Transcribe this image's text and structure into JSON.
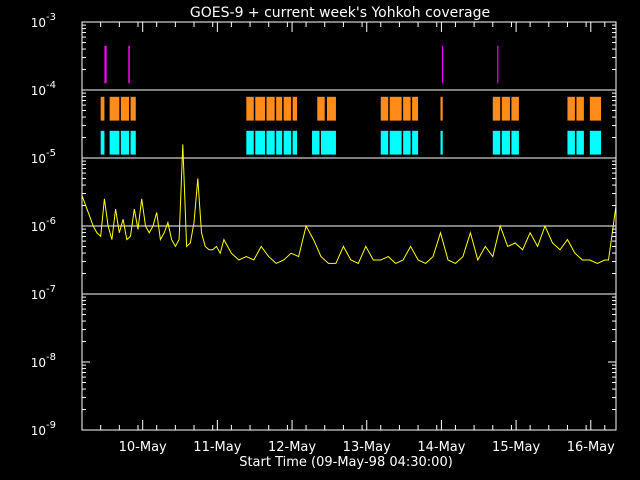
{
  "chart_data": {
    "type": "line",
    "title": "GOES-9 + current week's Yohkoh coverage",
    "xlabel": "Start Time (09-May-98 04:30:00)",
    "ylabel": "",
    "x_unit": "days after 09-May-98 04:30:00",
    "xlim": [
      0,
      7.15
    ],
    "x_ticks": [
      {
        "label": "10-May",
        "x": 0.8125
      },
      {
        "label": "11-May",
        "x": 1.8125
      },
      {
        "label": "12-May",
        "x": 2.8125
      },
      {
        "label": "13-May",
        "x": 3.8125
      },
      {
        "label": "14-May",
        "x": 4.8125
      },
      {
        "label": "15-May",
        "x": 5.8125
      },
      {
        "label": "16-May",
        "x": 6.8125
      }
    ],
    "y_scale": "log",
    "ylim_exp": [
      -9,
      -3
    ],
    "y_ticks": [
      {
        "base": "10",
        "exp": "-9",
        "value": -9
      },
      {
        "base": "10",
        "exp": "-8",
        "value": -8
      },
      {
        "base": "10",
        "exp": "-7",
        "value": -7
      },
      {
        "base": "10",
        "exp": "-6",
        "value": -6
      },
      {
        "base": "10",
        "exp": "-5",
        "value": -5
      },
      {
        "base": "10",
        "exp": "-4",
        "value": -4
      },
      {
        "base": "10",
        "exp": "-3",
        "value": -3
      }
    ],
    "gridlines_y": [
      -7,
      -6,
      -5,
      -4
    ],
    "colors": {
      "background": "#000000",
      "axes": "#ffffff",
      "goes_flux": "#ffff00",
      "bar_magenta": "#ff00ff",
      "bar_orange": "#ff8c1a",
      "bar_cyan": "#00ffff"
    },
    "series": [
      {
        "color": "#ffff00",
        "x": [
          0.0,
          0.05,
          0.1,
          0.15,
          0.2,
          0.25,
          0.3,
          0.35,
          0.4,
          0.45,
          0.5,
          0.55,
          0.6,
          0.65,
          0.7,
          0.75,
          0.8,
          0.85,
          0.9,
          0.95,
          1.0,
          1.05,
          1.1,
          1.15,
          1.2,
          1.25,
          1.3,
          1.35,
          1.4,
          1.45,
          1.5,
          1.55,
          1.6,
          1.65,
          1.7,
          1.75,
          1.8,
          1.85,
          1.9,
          1.95,
          2.0,
          2.1,
          2.2,
          2.3,
          2.4,
          2.5,
          2.6,
          2.7,
          2.8,
          2.9,
          3.0,
          3.1,
          3.2,
          3.3,
          3.4,
          3.5,
          3.6,
          3.7,
          3.8,
          3.9,
          4.0,
          4.1,
          4.2,
          4.3,
          4.4,
          4.5,
          4.6,
          4.7,
          4.8,
          4.9,
          5.0,
          5.1,
          5.2,
          5.3,
          5.4,
          5.5,
          5.6,
          5.7,
          5.8,
          5.9,
          6.0,
          6.1,
          6.2,
          6.3,
          6.4,
          6.5,
          6.6,
          6.7,
          6.8,
          6.9,
          7.0,
          7.05,
          7.1,
          7.15
        ],
        "y_exp": [
          -5.55,
          -5.7,
          -5.85,
          -6.0,
          -6.1,
          -6.15,
          -5.6,
          -6.0,
          -6.2,
          -5.75,
          -6.1,
          -5.9,
          -6.2,
          -6.15,
          -5.75,
          -6.05,
          -5.6,
          -6.0,
          -6.1,
          -6.0,
          -5.8,
          -6.2,
          -6.1,
          -5.95,
          -6.2,
          -6.3,
          -6.2,
          -4.8,
          -6.3,
          -6.25,
          -5.95,
          -5.3,
          -6.1,
          -6.3,
          -6.35,
          -6.35,
          -6.3,
          -6.4,
          -6.2,
          -6.3,
          -6.4,
          -6.5,
          -6.45,
          -6.5,
          -6.3,
          -6.45,
          -6.55,
          -6.5,
          -6.4,
          -6.45,
          -6.0,
          -6.2,
          -6.45,
          -6.55,
          -6.55,
          -6.3,
          -6.5,
          -6.55,
          -6.3,
          -6.5,
          -6.5,
          -6.45,
          -6.55,
          -6.5,
          -6.3,
          -6.5,
          -6.55,
          -6.45,
          -6.1,
          -6.5,
          -6.55,
          -6.45,
          -6.1,
          -6.5,
          -6.3,
          -6.45,
          -6.0,
          -6.3,
          -6.25,
          -6.35,
          -6.1,
          -6.3,
          -6.0,
          -6.25,
          -6.35,
          -6.2,
          -6.4,
          -6.5,
          -6.5,
          -6.55,
          -6.5,
          -6.5,
          -6.1,
          -5.7
        ]
      }
    ],
    "coverage_bars": [
      {
        "color": "#ff00ff",
        "y_exp_range": [
          -3.9,
          -3.35
        ],
        "intervals": [
          [
            0.3,
            0.33
          ],
          [
            0.62,
            0.64
          ],
          [
            4.82,
            4.835
          ],
          [
            5.56,
            5.575
          ]
        ]
      },
      {
        "color": "#ff8c1a",
        "y_exp_range": [
          -4.45,
          -4.1
        ],
        "intervals": [
          [
            0.25,
            0.3
          ],
          [
            0.37,
            0.5
          ],
          [
            0.52,
            0.63
          ],
          [
            0.65,
            0.72
          ],
          [
            2.2,
            2.3
          ],
          [
            2.32,
            2.45
          ],
          [
            2.47,
            2.58
          ],
          [
            2.6,
            2.68
          ],
          [
            2.7,
            2.8
          ],
          [
            2.82,
            2.88
          ],
          [
            3.15,
            3.25
          ],
          [
            3.28,
            3.4
          ],
          [
            4.0,
            4.1
          ],
          [
            4.12,
            4.28
          ],
          [
            4.3,
            4.4
          ],
          [
            4.42,
            4.5
          ],
          [
            4.8,
            4.83
          ],
          [
            5.5,
            5.6
          ],
          [
            5.62,
            5.73
          ],
          [
            5.75,
            5.85
          ],
          [
            6.5,
            6.6
          ],
          [
            6.62,
            6.72
          ],
          [
            6.8,
            6.95
          ]
        ]
      },
      {
        "color": "#00ffff",
        "y_exp_range": [
          -4.95,
          -4.6
        ],
        "intervals": [
          [
            0.25,
            0.3
          ],
          [
            0.37,
            0.5
          ],
          [
            0.52,
            0.63
          ],
          [
            0.65,
            0.72
          ],
          [
            2.2,
            2.3
          ],
          [
            2.32,
            2.45
          ],
          [
            2.47,
            2.58
          ],
          [
            2.6,
            2.68
          ],
          [
            2.7,
            2.8
          ],
          [
            2.82,
            2.88
          ],
          [
            3.08,
            3.18
          ],
          [
            3.2,
            3.4
          ],
          [
            4.0,
            4.1
          ],
          [
            4.12,
            4.28
          ],
          [
            4.3,
            4.4
          ],
          [
            4.42,
            4.5
          ],
          [
            4.8,
            4.83
          ],
          [
            5.5,
            5.6
          ],
          [
            5.62,
            5.73
          ],
          [
            5.75,
            5.85
          ],
          [
            6.5,
            6.6
          ],
          [
            6.62,
            6.72
          ],
          [
            6.8,
            6.95
          ]
        ]
      }
    ]
  }
}
